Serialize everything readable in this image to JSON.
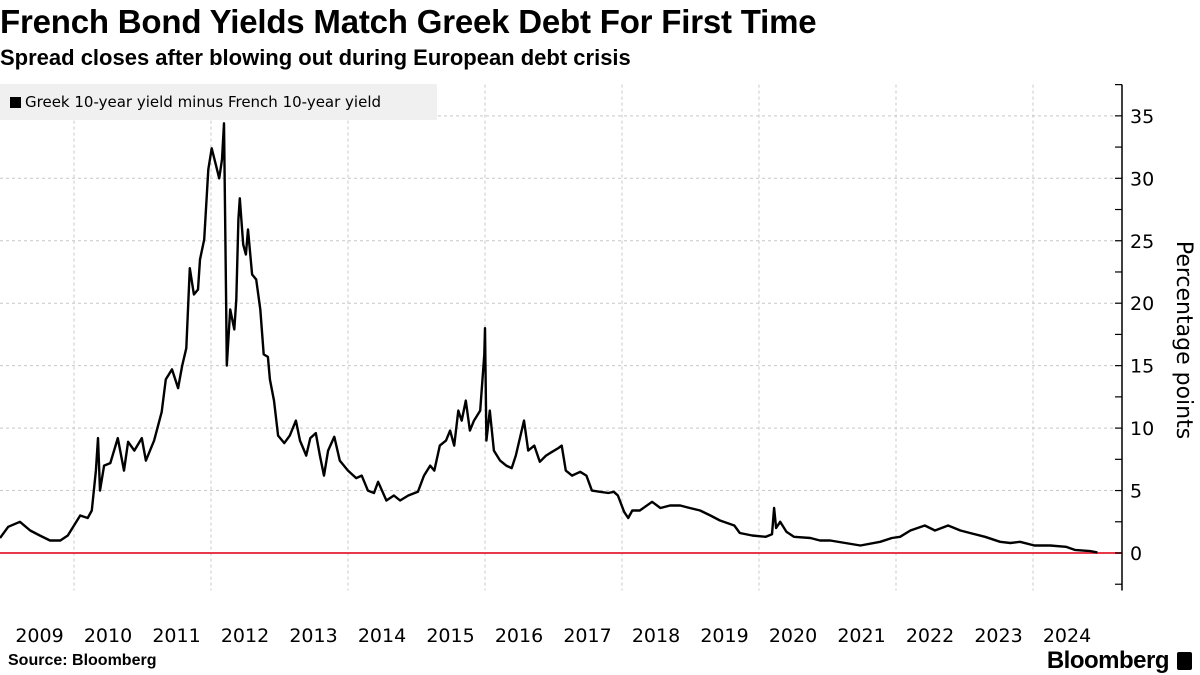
{
  "chart_data": {
    "type": "line",
    "title": "French Bond Yields Match Greek Debt For First Time",
    "subtitle": "Spread closes after blowing out during European debt crisis",
    "ylabel": "Percentage points",
    "xlabel": "",
    "ylim": [
      -3,
      37.5
    ],
    "xlim": [
      2008.92,
      2025.25
    ],
    "yticks": [
      0,
      5,
      10,
      15,
      20,
      25,
      30,
      35
    ],
    "xtick_labels": [
      "2009",
      "2010",
      "2011",
      "2012",
      "2013",
      "2014",
      "2015",
      "2016",
      "2017",
      "2018",
      "2019",
      "2020",
      "2021",
      "2022",
      "2023",
      "2024"
    ],
    "grid": true,
    "legend_placement": "top-left",
    "reference_line": {
      "value": 0,
      "color": "#e8394b"
    },
    "line_color": "#000000",
    "series": [
      {
        "name": "Greek 10-year yield minus French 10-year yield",
        "points": [
          [
            2008.92,
            1.2
          ],
          [
            2009.04,
            2.1
          ],
          [
            2009.21,
            2.5
          ],
          [
            2009.36,
            1.8
          ],
          [
            2009.5,
            1.4
          ],
          [
            2009.65,
            1.0
          ],
          [
            2009.8,
            1.0
          ],
          [
            2009.91,
            1.4
          ],
          [
            2010.0,
            2.2
          ],
          [
            2010.09,
            3.0
          ],
          [
            2010.2,
            2.8
          ],
          [
            2010.26,
            3.4
          ],
          [
            2010.32,
            6.6
          ],
          [
            2010.35,
            9.2
          ],
          [
            2010.38,
            5.0
          ],
          [
            2010.44,
            7.0
          ],
          [
            2010.53,
            7.2
          ],
          [
            2010.64,
            9.2
          ],
          [
            2010.73,
            6.6
          ],
          [
            2010.79,
            8.9
          ],
          [
            2010.88,
            8.2
          ],
          [
            2010.99,
            9.2
          ],
          [
            2011.05,
            7.4
          ],
          [
            2011.11,
            8.2
          ],
          [
            2011.17,
            9.0
          ],
          [
            2011.28,
            11.3
          ],
          [
            2011.34,
            13.9
          ],
          [
            2011.43,
            14.7
          ],
          [
            2011.52,
            13.2
          ],
          [
            2011.58,
            15.0
          ],
          [
            2011.64,
            16.4
          ],
          [
            2011.69,
            22.8
          ],
          [
            2011.75,
            20.7
          ],
          [
            2011.81,
            21.1
          ],
          [
            2011.84,
            23.5
          ],
          [
            2011.9,
            25.1
          ],
          [
            2011.96,
            30.7
          ],
          [
            2012.01,
            32.4
          ],
          [
            2012.07,
            31.1
          ],
          [
            2012.12,
            30.0
          ],
          [
            2012.16,
            31.5
          ],
          [
            2012.19,
            34.4
          ],
          [
            2012.22,
            20.3
          ],
          [
            2012.23,
            15.0
          ],
          [
            2012.28,
            19.5
          ],
          [
            2012.34,
            17.9
          ],
          [
            2012.37,
            20.3
          ],
          [
            2012.4,
            26.7
          ],
          [
            2012.42,
            28.4
          ],
          [
            2012.47,
            24.7
          ],
          [
            2012.51,
            23.9
          ],
          [
            2012.54,
            25.9
          ],
          [
            2012.6,
            22.3
          ],
          [
            2012.66,
            21.9
          ],
          [
            2012.72,
            19.5
          ],
          [
            2012.77,
            15.9
          ],
          [
            2012.83,
            15.7
          ],
          [
            2012.86,
            13.9
          ],
          [
            2012.92,
            12.2
          ],
          [
            2012.98,
            9.4
          ],
          [
            2013.07,
            8.8
          ],
          [
            2013.15,
            9.4
          ],
          [
            2013.24,
            10.6
          ],
          [
            2013.3,
            9.0
          ],
          [
            2013.36,
            8.2
          ],
          [
            2013.39,
            7.8
          ],
          [
            2013.45,
            9.2
          ],
          [
            2013.53,
            9.6
          ],
          [
            2013.59,
            7.8
          ],
          [
            2013.65,
            6.2
          ],
          [
            2013.71,
            8.2
          ],
          [
            2013.8,
            9.3
          ],
          [
            2013.88,
            7.4
          ],
          [
            2014.0,
            6.6
          ],
          [
            2014.12,
            6.0
          ],
          [
            2014.2,
            6.2
          ],
          [
            2014.29,
            5.0
          ],
          [
            2014.38,
            4.8
          ],
          [
            2014.44,
            5.7
          ],
          [
            2014.56,
            4.2
          ],
          [
            2014.67,
            4.6
          ],
          [
            2014.76,
            4.2
          ],
          [
            2014.88,
            4.6
          ],
          [
            2015.02,
            4.9
          ],
          [
            2015.11,
            6.2
          ],
          [
            2015.2,
            7.0
          ],
          [
            2015.26,
            6.6
          ],
          [
            2015.34,
            8.6
          ],
          [
            2015.43,
            9.0
          ],
          [
            2015.49,
            9.8
          ],
          [
            2015.55,
            8.6
          ],
          [
            2015.61,
            11.4
          ],
          [
            2015.66,
            10.6
          ],
          [
            2015.72,
            12.2
          ],
          [
            2015.78,
            9.8
          ],
          [
            2015.84,
            10.6
          ],
          [
            2015.93,
            11.4
          ],
          [
            2015.99,
            15.9
          ],
          [
            2016.0,
            18.0
          ],
          [
            2016.02,
            9.0
          ],
          [
            2016.07,
            11.4
          ],
          [
            2016.13,
            8.2
          ],
          [
            2016.22,
            7.4
          ],
          [
            2016.31,
            7.0
          ],
          [
            2016.39,
            6.8
          ],
          [
            2016.45,
            7.8
          ],
          [
            2016.51,
            9.2
          ],
          [
            2016.57,
            10.6
          ],
          [
            2016.63,
            8.2
          ],
          [
            2016.72,
            8.6
          ],
          [
            2016.8,
            7.3
          ],
          [
            2016.89,
            7.8
          ],
          [
            2016.98,
            8.1
          ],
          [
            2017.07,
            8.4
          ],
          [
            2017.12,
            8.6
          ],
          [
            2017.18,
            6.6
          ],
          [
            2017.27,
            6.2
          ],
          [
            2017.39,
            6.5
          ],
          [
            2017.48,
            6.2
          ],
          [
            2017.56,
            5.0
          ],
          [
            2017.68,
            4.9
          ],
          [
            2017.8,
            4.8
          ],
          [
            2017.88,
            4.9
          ],
          [
            2017.94,
            4.6
          ],
          [
            2018.03,
            3.3
          ],
          [
            2018.09,
            2.8
          ],
          [
            2018.15,
            3.4
          ],
          [
            2018.26,
            3.4
          ],
          [
            2018.44,
            4.1
          ],
          [
            2018.56,
            3.6
          ],
          [
            2018.7,
            3.8
          ],
          [
            2018.85,
            3.8
          ],
          [
            2018.99,
            3.6
          ],
          [
            2019.14,
            3.4
          ],
          [
            2019.29,
            3.0
          ],
          [
            2019.43,
            2.6
          ],
          [
            2019.64,
            2.2
          ],
          [
            2019.72,
            1.6
          ],
          [
            2019.9,
            1.4
          ],
          [
            2020.1,
            1.3
          ],
          [
            2020.19,
            1.5
          ],
          [
            2020.22,
            3.6
          ],
          [
            2020.25,
            2.0
          ],
          [
            2020.31,
            2.5
          ],
          [
            2020.4,
            1.7
          ],
          [
            2020.51,
            1.3
          ],
          [
            2020.75,
            1.2
          ],
          [
            2020.89,
            1.0
          ],
          [
            2021.04,
            1.0
          ],
          [
            2021.26,
            0.8
          ],
          [
            2021.48,
            0.6
          ],
          [
            2021.77,
            0.9
          ],
          [
            2021.94,
            1.2
          ],
          [
            2022.06,
            1.3
          ],
          [
            2022.21,
            1.8
          ],
          [
            2022.42,
            2.2
          ],
          [
            2022.57,
            1.8
          ],
          [
            2022.76,
            2.2
          ],
          [
            2022.94,
            1.8
          ],
          [
            2023.08,
            1.6
          ],
          [
            2023.3,
            1.3
          ],
          [
            2023.52,
            0.9
          ],
          [
            2023.67,
            0.8
          ],
          [
            2023.81,
            0.9
          ],
          [
            2024.02,
            0.6
          ],
          [
            2024.25,
            0.6
          ],
          [
            2024.48,
            0.5
          ],
          [
            2024.61,
            0.25
          ],
          [
            2024.83,
            0.15
          ],
          [
            2024.94,
            0.05
          ]
        ]
      }
    ]
  },
  "legend": {
    "label": "Greek 10-year yield minus French 10-year yield"
  },
  "footer": {
    "source": "Source: Bloomberg",
    "logo": "Bloomberg"
  }
}
